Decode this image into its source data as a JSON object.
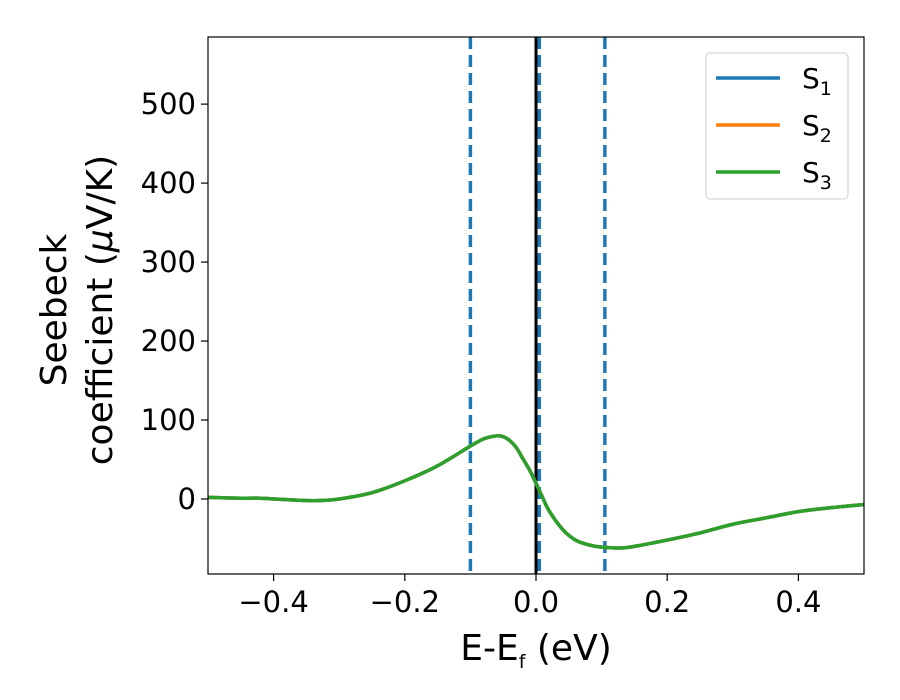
{
  "chart_data": {
    "type": "line",
    "title": "",
    "xlabel": "E-E",
    "xlabel_sub": "f",
    "xlabel_unit": " (eV)",
    "ylabel_line1": "Seebeck",
    "ylabel_line2": "coefficient  (",
    "ylabel_mu": "μ",
    "ylabel_unit": "V/K)",
    "xlim": [
      -0.5,
      0.5
    ],
    "ylim": [
      -95,
      585
    ],
    "xticks": [
      -0.4,
      -0.2,
      0.0,
      0.2,
      0.4
    ],
    "xtick_labels": [
      "−0.4",
      "−0.2",
      "0.0",
      "0.2",
      "0.4"
    ],
    "yticks": [
      0,
      100,
      200,
      300,
      400,
      500
    ],
    "ytick_labels": [
      "0",
      "100",
      "200",
      "300",
      "400",
      "500"
    ],
    "grid": false,
    "legend_position": "top-right",
    "vlines": [
      {
        "x": -0.1,
        "style": "dashed",
        "color": "#1f77b4"
      },
      {
        "x": 0.105,
        "style": "dashed",
        "color": "#1f77b4"
      },
      {
        "x": 0.005,
        "style": "dashed",
        "color": "#1f77b4"
      },
      {
        "x": 0.0,
        "style": "solid",
        "color": "#000000"
      }
    ],
    "x": [
      -0.5,
      -0.45,
      -0.42,
      -0.4,
      -0.35,
      -0.33,
      -0.3,
      -0.25,
      -0.2,
      -0.15,
      -0.1,
      -0.08,
      -0.06,
      -0.05,
      -0.04,
      -0.03,
      -0.02,
      -0.01,
      0.0,
      0.01,
      0.02,
      0.04,
      0.06,
      0.08,
      0.1,
      0.13,
      0.15,
      0.2,
      0.25,
      0.3,
      0.35,
      0.4,
      0.45,
      0.5
    ],
    "series": [
      {
        "name": "S",
        "sub": "1",
        "color": "#1f77b4",
        "values": [
          2,
          1,
          1,
          0,
          -2,
          -2,
          0,
          8,
          23,
          42,
          67,
          76,
          80,
          79,
          74,
          65,
          51,
          37,
          20,
          2,
          -15,
          -38,
          -52,
          -58,
          -61,
          -62,
          -60,
          -52,
          -43,
          -32,
          -24,
          -16,
          -11,
          -7
        ]
      },
      {
        "name": "S",
        "sub": "2",
        "color": "#ff7f0e",
        "values": [
          2,
          1,
          1,
          0,
          -2,
          -2,
          0,
          8,
          23,
          42,
          67,
          76,
          80,
          79,
          74,
          65,
          51,
          37,
          20,
          2,
          -15,
          -38,
          -52,
          -58,
          -61,
          -62,
          -60,
          -52,
          -43,
          -32,
          -24,
          -16,
          -11,
          -7
        ]
      },
      {
        "name": "S",
        "sub": "3",
        "color": "#2ca02c",
        "values": [
          2,
          1,
          1,
          0,
          -2,
          -2,
          0,
          8,
          23,
          42,
          67,
          76,
          80,
          79,
          74,
          65,
          51,
          37,
          20,
          2,
          -15,
          -38,
          -52,
          -58,
          -61,
          -62,
          -60,
          -52,
          -43,
          -32,
          -24,
          -16,
          -11,
          -7
        ]
      }
    ]
  }
}
